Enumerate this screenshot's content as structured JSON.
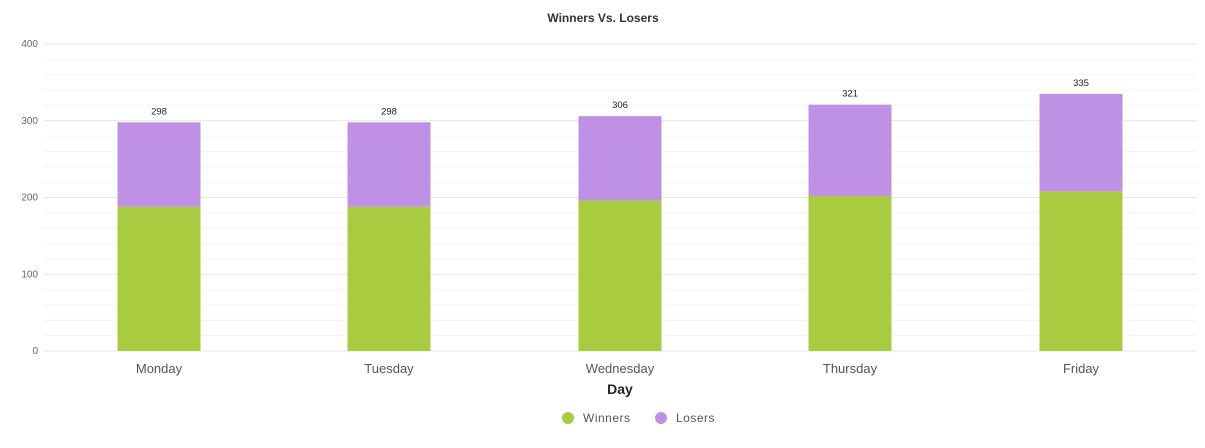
{
  "chart_data": {
    "type": "bar",
    "stacked": true,
    "title": "Winners Vs. Losers",
    "xlabel": "Day",
    "ylabel": "",
    "categories": [
      "Monday",
      "Tuesday",
      "Wednesday",
      "Thursday",
      "Friday"
    ],
    "series": [
      {
        "name": "Winners",
        "color": "#a8cb3f",
        "values": [
          188,
          188,
          196,
          202,
          208
        ]
      },
      {
        "name": "Losers",
        "color": "#bf91e5",
        "values": [
          110,
          110,
          110,
          119,
          127
        ]
      }
    ],
    "totals": [
      298,
      298,
      306,
      321,
      335
    ],
    "ylim": [
      0,
      400
    ],
    "yticks": [
      0,
      100,
      200,
      300,
      400
    ],
    "grid": true,
    "legend": "bottom-center"
  }
}
